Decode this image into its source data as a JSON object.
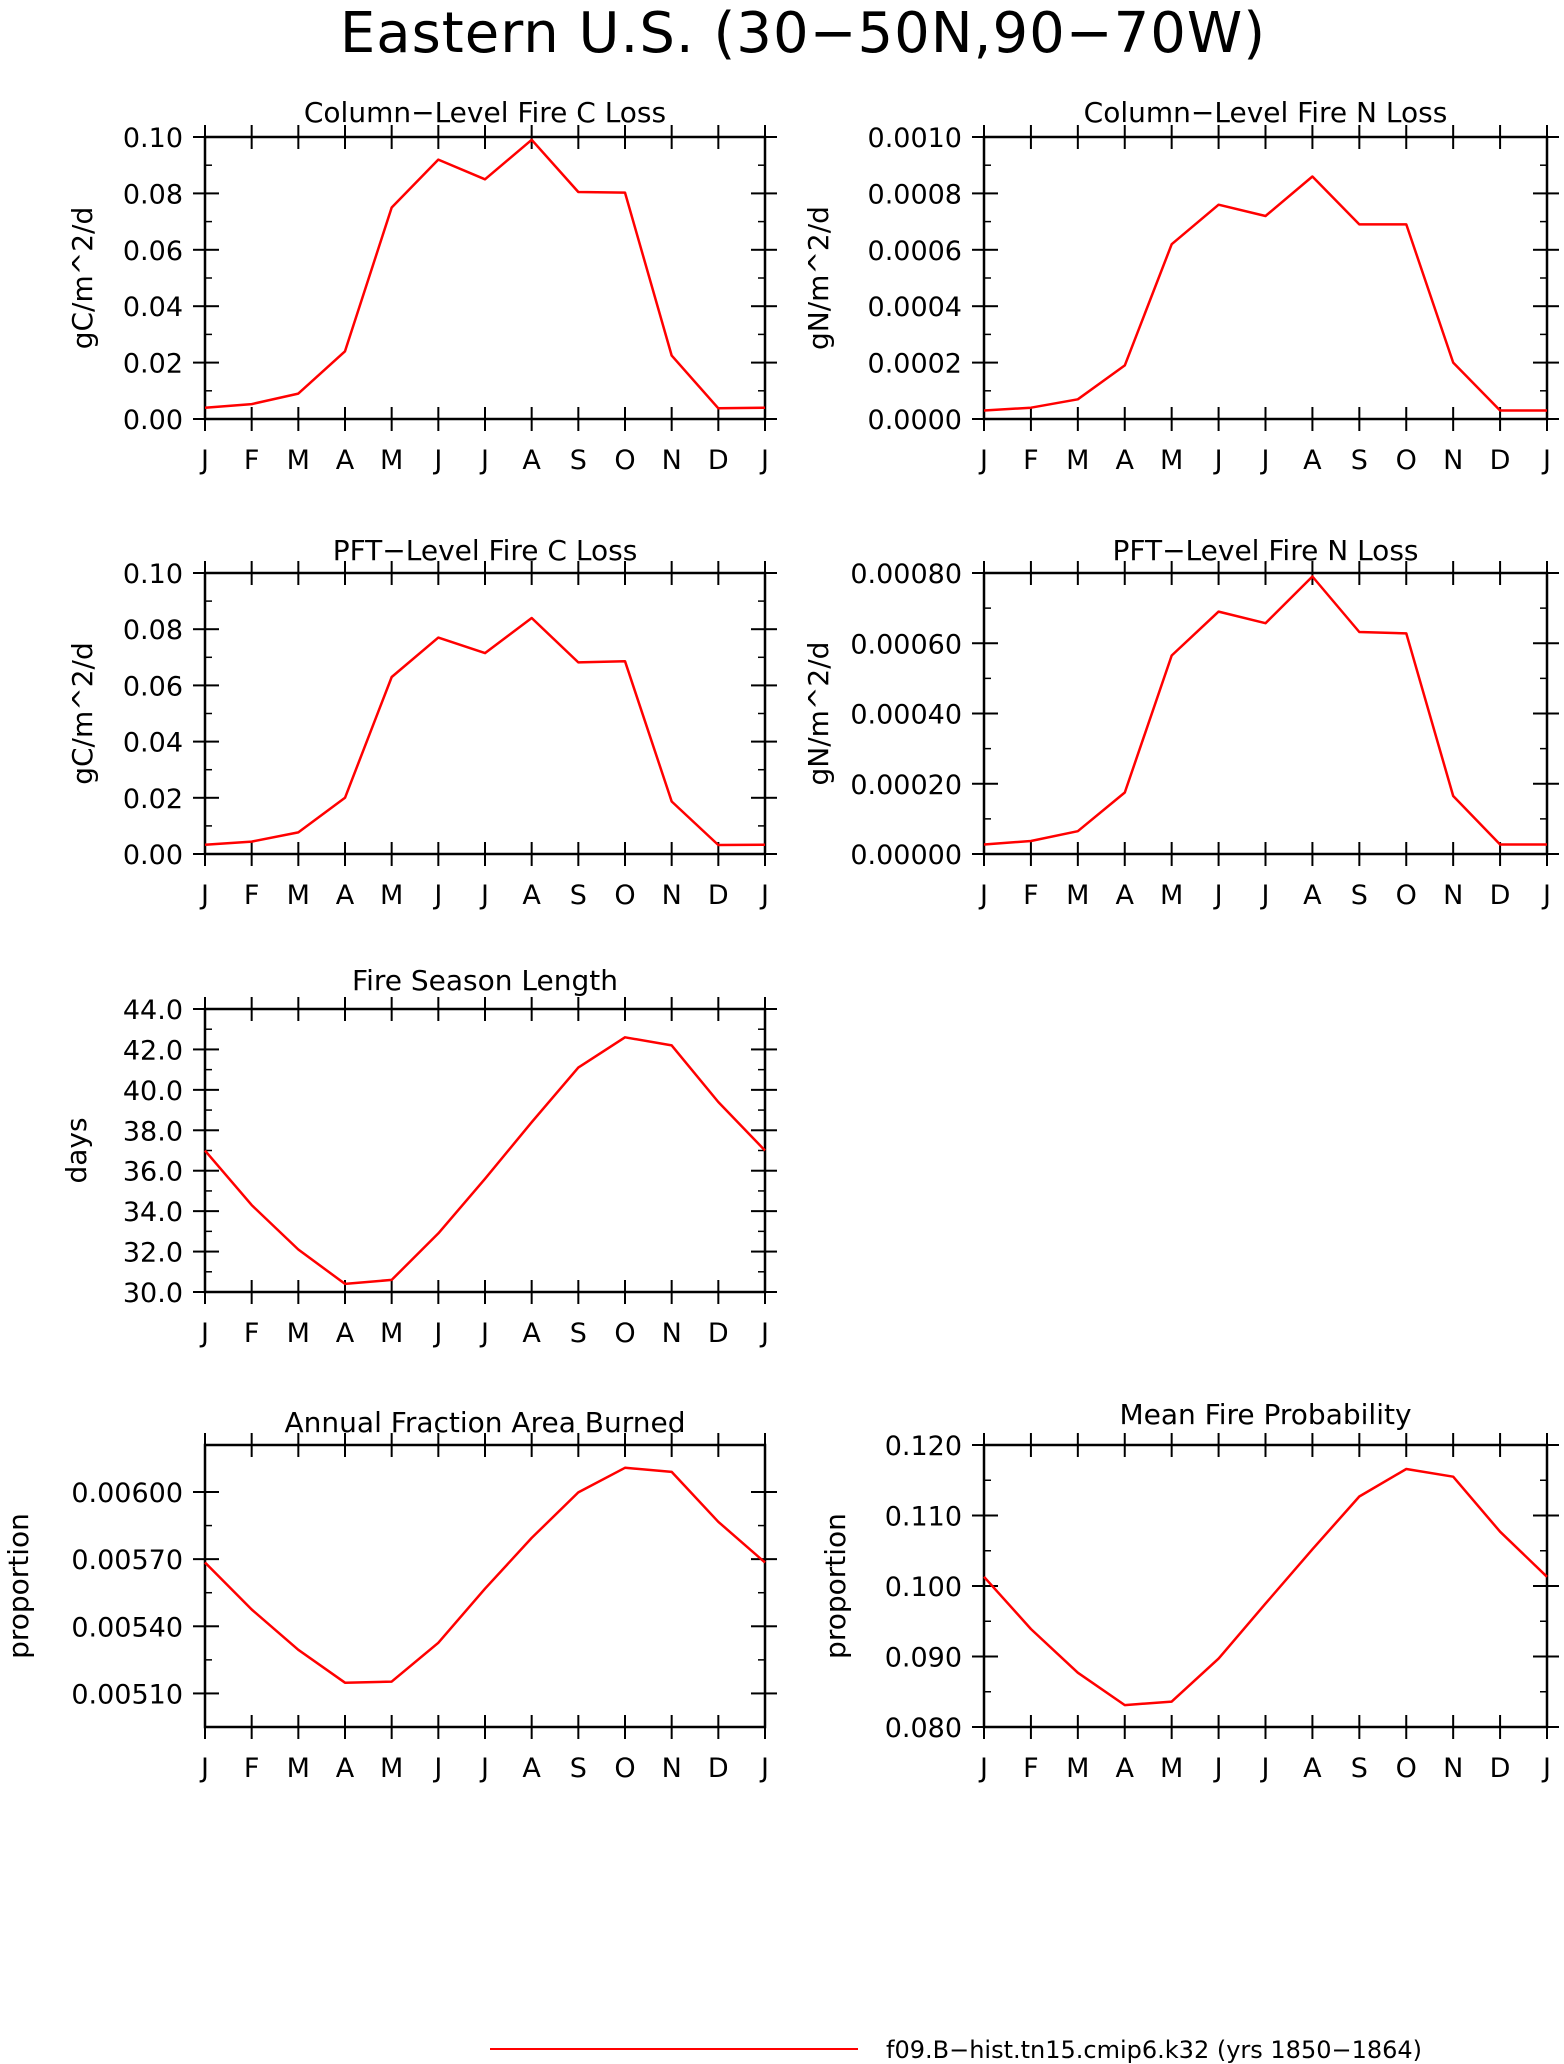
{
  "figure": {
    "title": "Eastern U.S. (30−50N,90−70W)"
  },
  "legend": {
    "label": "f09.B−hist.tn15.cmip6.k32 (yrs 1850−1864)",
    "color": "#ff0000"
  },
  "chart_data": [
    {
      "type": "line",
      "title": "Column−Level Fire C Loss",
      "ylabel": "gC/m^2/d",
      "categories": [
        "J",
        "F",
        "M",
        "A",
        "M",
        "J",
        "J",
        "A",
        "S",
        "O",
        "N",
        "D",
        "J"
      ],
      "series": [
        {
          "values": [
            0.004,
            0.0053,
            0.009,
            0.024,
            0.075,
            0.092,
            0.085,
            0.099,
            0.0805,
            0.0803,
            0.0225,
            0.0038,
            0.004
          ]
        }
      ],
      "ylim": [
        0,
        0.1
      ],
      "yticks": [
        "0.00",
        "0.02",
        "0.04",
        "0.06",
        "0.08",
        "0.10"
      ],
      "color": "#ff0000"
    },
    {
      "type": "line",
      "title": "Column−Level Fire N Loss",
      "ylabel": "gN/m^2/d",
      "categories": [
        "J",
        "F",
        "M",
        "A",
        "M",
        "J",
        "J",
        "A",
        "S",
        "O",
        "N",
        "D",
        "J"
      ],
      "series": [
        {
          "values": [
            3e-05,
            4e-05,
            7e-05,
            0.00019,
            0.00062,
            0.00076,
            0.00072,
            0.00086,
            0.00069,
            0.00069,
            0.0002,
            3e-05,
            3e-05
          ]
        }
      ],
      "ylim": [
        0,
        0.001
      ],
      "yticks": [
        "0.0000",
        "0.0002",
        "0.0004",
        "0.0006",
        "0.0008",
        "0.0010"
      ],
      "color": "#ff0000"
    },
    {
      "type": "line",
      "title": "PFT−Level Fire C Loss",
      "ylabel": "gC/m^2/d",
      "categories": [
        "J",
        "F",
        "M",
        "A",
        "M",
        "J",
        "J",
        "A",
        "S",
        "O",
        "N",
        "D",
        "J"
      ],
      "series": [
        {
          "values": [
            0.0033,
            0.0044,
            0.0077,
            0.02,
            0.063,
            0.077,
            0.0715,
            0.084,
            0.0682,
            0.0686,
            0.0187,
            0.0032,
            0.0033
          ]
        }
      ],
      "ylim": [
        0,
        0.1
      ],
      "yticks": [
        "0.00",
        "0.02",
        "0.04",
        "0.06",
        "0.08",
        "0.10"
      ],
      "color": "#ff0000"
    },
    {
      "type": "line",
      "title": "PFT−Level Fire N Loss",
      "ylabel": "gN/m^2/d",
      "categories": [
        "J",
        "F",
        "M",
        "A",
        "M",
        "J",
        "J",
        "A",
        "S",
        "O",
        "N",
        "D",
        "J"
      ],
      "series": [
        {
          "values": [
            2.7e-05,
            3.7e-05,
            6.5e-05,
            0.000175,
            0.000565,
            0.00069,
            0.000657,
            0.00079,
            0.000632,
            0.000628,
            0.000165,
            2.7e-05,
            2.7e-05
          ]
        }
      ],
      "ylim": [
        0,
        0.0008
      ],
      "yticks": [
        "0.00000",
        "0.00020",
        "0.00040",
        "0.00060",
        "0.00080"
      ],
      "color": "#ff0000"
    },
    {
      "type": "line",
      "title": "Fire Season Length",
      "ylabel": "days",
      "categories": [
        "J",
        "F",
        "M",
        "A",
        "M",
        "J",
        "J",
        "A",
        "S",
        "O",
        "N",
        "D",
        "J"
      ],
      "series": [
        {
          "values": [
            37.0,
            34.3,
            32.1,
            30.4,
            30.6,
            32.9,
            35.6,
            38.4,
            41.1,
            42.6,
            42.2,
            39.4,
            37.0
          ]
        }
      ],
      "ylim": [
        30,
        44
      ],
      "yticks": [
        "30.0",
        "32.0",
        "34.0",
        "36.0",
        "38.0",
        "40.0",
        "42.0",
        "44.0"
      ],
      "color": "#ff0000"
    },
    {
      "type": "line",
      "title": "Annual Fraction Area Burned",
      "ylabel": "proportion",
      "categories": [
        "J",
        "F",
        "M",
        "A",
        "M",
        "J",
        "J",
        "A",
        "S",
        "O",
        "N",
        "D",
        "J"
      ],
      "series": [
        {
          "values": [
            0.005685,
            0.005475,
            0.005295,
            0.005148,
            0.005153,
            0.005326,
            0.005568,
            0.005795,
            0.005998,
            0.006108,
            0.00609,
            0.005867,
            0.005685
          ]
        }
      ],
      "ylim": [
        0.00495,
        0.00621
      ],
      "yticks": [
        "0.00510",
        "0.00540",
        "0.00570",
        "0.00600"
      ],
      "ytick_values": [
        0.0051,
        0.0054,
        0.0057,
        0.006
      ],
      "color": "#ff0000"
    },
    {
      "type": "line",
      "title": "Mean Fire Probability",
      "ylabel": "proportion",
      "categories": [
        "J",
        "F",
        "M",
        "A",
        "M",
        "J",
        "J",
        "A",
        "S",
        "O",
        "N",
        "D",
        "J"
      ],
      "series": [
        {
          "values": [
            0.1013,
            0.0939,
            0.0877,
            0.0831,
            0.0836,
            0.0897,
            0.0975,
            0.1052,
            0.1127,
            0.1166,
            0.1155,
            0.1077,
            0.1013
          ]
        }
      ],
      "ylim": [
        0.08,
        0.12
      ],
      "yticks": [
        "0.080",
        "0.090",
        "0.100",
        "0.110",
        "0.120"
      ],
      "color": "#ff0000"
    }
  ]
}
